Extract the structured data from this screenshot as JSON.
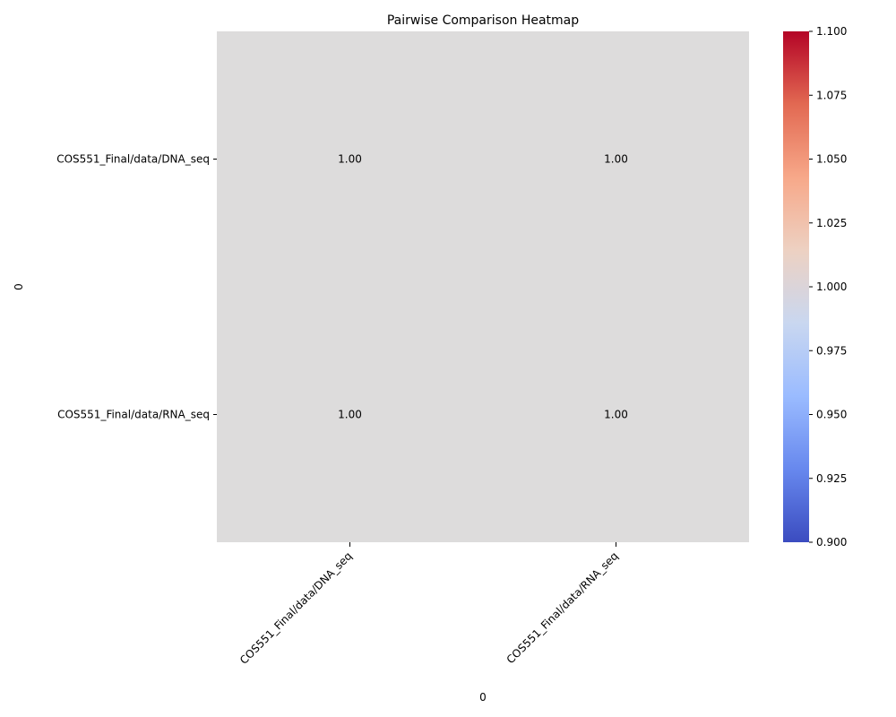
{
  "chart_data": {
    "type": "heatmap",
    "title": "Pairwise Comparison Heatmap",
    "xlabel": "0",
    "ylabel": "0",
    "rows": [
      "COS551_Final/data/DNA_seq",
      "COS551_Final/data/RNA_seq"
    ],
    "columns": [
      "COS551_Final/data/DNA_seq",
      "COS551_Final/data/RNA_seq"
    ],
    "values": [
      [
        1.0,
        1.0
      ],
      [
        1.0,
        1.0
      ]
    ],
    "cell_labels": [
      [
        "1.00",
        "1.00"
      ],
      [
        "1.00",
        "1.00"
      ]
    ],
    "cell_color": "#dddcdc",
    "colormap": "coolwarm",
    "colorbar": {
      "range": [
        0.9,
        1.1
      ],
      "ticks": [
        "0.900",
        "0.925",
        "0.950",
        "0.975",
        "1.000",
        "1.025",
        "1.050",
        "1.075",
        "1.100"
      ],
      "colors": [
        "#3b4cc0",
        "#6788ee",
        "#9abbff",
        "#c9d7f0",
        "#edd1c2",
        "#f7a889",
        "#e26952",
        "#b40426"
      ]
    },
    "grid": false
  }
}
